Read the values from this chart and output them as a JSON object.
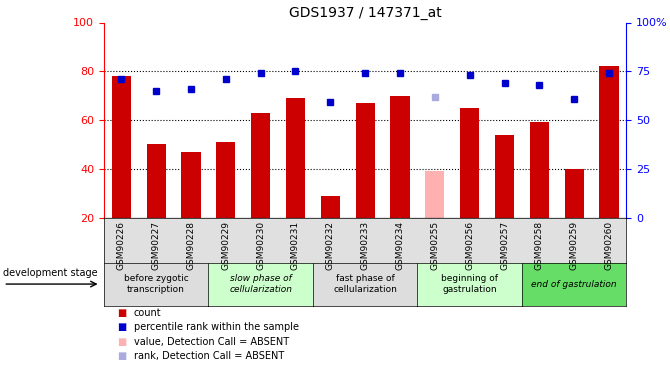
{
  "title": "GDS1937 / 147371_at",
  "samples": [
    "GSM90226",
    "GSM90227",
    "GSM90228",
    "GSM90229",
    "GSM90230",
    "GSM90231",
    "GSM90232",
    "GSM90233",
    "GSM90234",
    "GSM90255",
    "GSM90256",
    "GSM90257",
    "GSM90258",
    "GSM90259",
    "GSM90260"
  ],
  "bar_values": [
    78,
    50,
    47,
    51,
    63,
    69,
    29,
    67,
    70,
    39,
    65,
    54,
    59,
    40,
    82
  ],
  "bar_absent": [
    false,
    false,
    false,
    false,
    false,
    false,
    false,
    false,
    false,
    true,
    false,
    false,
    false,
    false,
    false
  ],
  "rank_values": [
    71,
    65,
    66,
    71,
    74,
    75,
    59,
    74,
    74,
    62,
    73,
    69,
    68,
    61,
    74
  ],
  "rank_absent": [
    false,
    false,
    false,
    false,
    false,
    false,
    false,
    false,
    false,
    true,
    false,
    false,
    false,
    false,
    false
  ],
  "bar_color_normal": "#CC0000",
  "bar_color_absent": "#FFB0B0",
  "rank_color_normal": "#0000CC",
  "rank_color_absent": "#AAAADD",
  "ylim_left": [
    20,
    100
  ],
  "ylim_right": [
    0,
    100
  ],
  "yticks_left": [
    20,
    40,
    60,
    80,
    100
  ],
  "yticks_right": [
    0,
    25,
    50,
    75,
    100
  ],
  "ytick_labels_right": [
    "0",
    "25",
    "50",
    "75",
    "100%"
  ],
  "stages": [
    {
      "label": "before zygotic\ntranscription",
      "samples_idx": [
        0,
        1,
        2
      ],
      "color": "#DDDDDD",
      "font_italic": false
    },
    {
      "label": "slow phase of\ncellularization",
      "samples_idx": [
        3,
        4,
        5
      ],
      "color": "#CCFFCC",
      "font_italic": true
    },
    {
      "label": "fast phase of\ncellularization",
      "samples_idx": [
        6,
        7,
        8
      ],
      "color": "#DDDDDD",
      "font_italic": false
    },
    {
      "label": "beginning of\ngastrulation",
      "samples_idx": [
        9,
        10,
        11
      ],
      "color": "#CCFFCC",
      "font_italic": false
    },
    {
      "label": "end of gastrulation",
      "samples_idx": [
        12,
        13,
        14
      ],
      "color": "#66DD66",
      "font_italic": true
    }
  ],
  "bar_width": 0.55,
  "rank_marker_size": 5,
  "xlim": [
    -0.5,
    14.5
  ]
}
